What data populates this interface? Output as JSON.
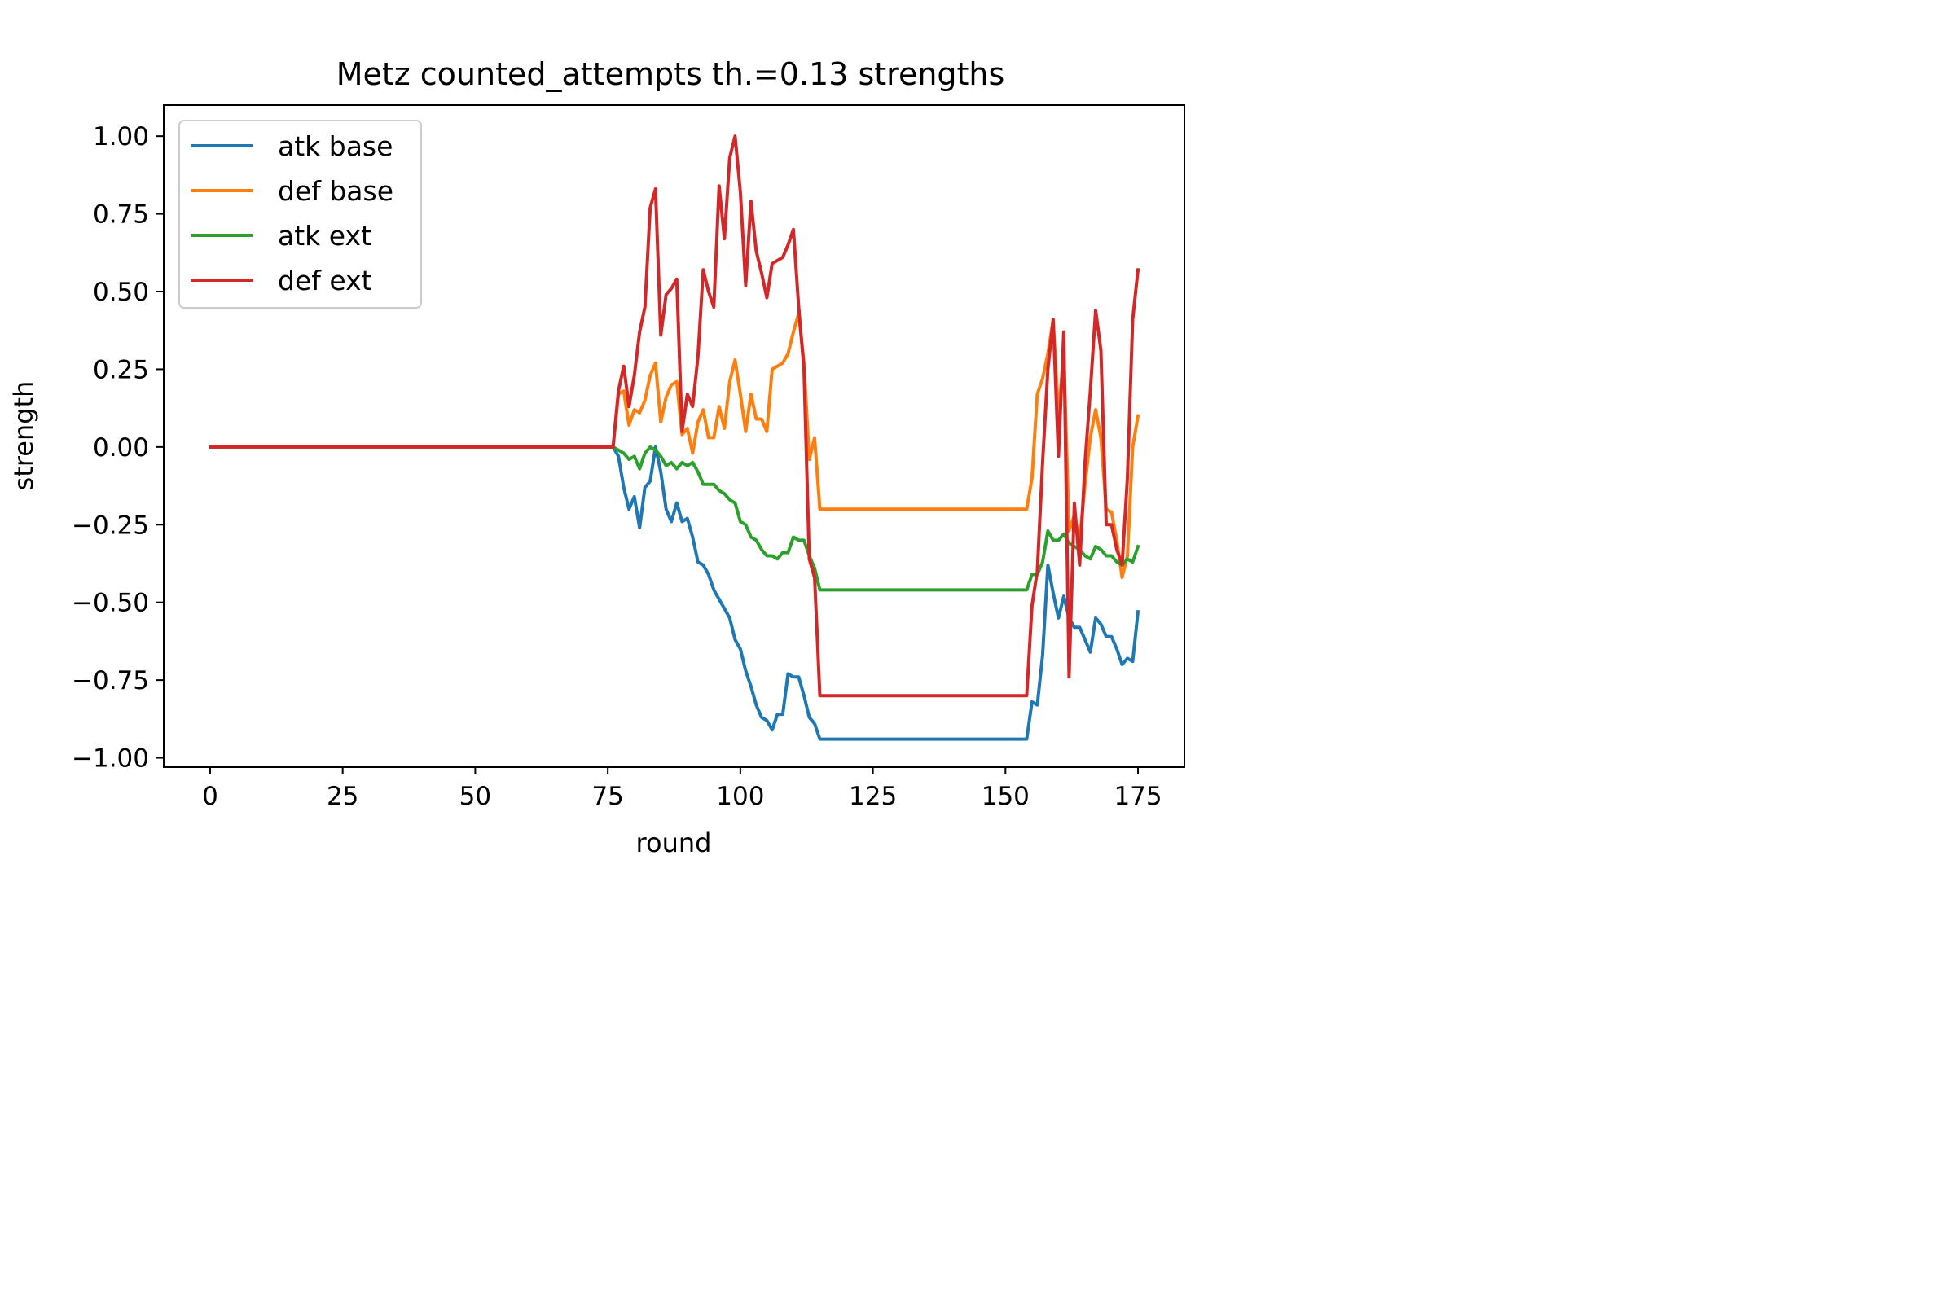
{
  "chart_data": {
    "type": "line",
    "title": "Metz counted_attempts th.=0.13 strengths",
    "xlabel": "round",
    "ylabel": "strength",
    "xlim": [
      -8.75,
      183.75
    ],
    "ylim": [
      -1.03,
      1.1
    ],
    "xticks": [
      0,
      25,
      50,
      75,
      100,
      125,
      150,
      175
    ],
    "xtick_labels": [
      "0",
      "25",
      "50",
      "75",
      "100",
      "125",
      "150",
      "175"
    ],
    "yticks": [
      1.0,
      0.75,
      0.5,
      0.25,
      0.0,
      -0.25,
      -0.5,
      -0.75,
      -1.0
    ],
    "ytick_labels": [
      "1.00",
      "0.75",
      "0.50",
      "0.25",
      "0.00",
      "−0.25",
      "−0.50",
      "−0.75",
      "−1.00"
    ],
    "grid": false,
    "legend": "upper left",
    "series": [
      {
        "name": "atk base",
        "color": "#1f77b4",
        "points": [
          [
            0,
            0
          ],
          [
            76,
            0
          ],
          [
            77,
            -0.03
          ],
          [
            78,
            -0.13
          ],
          [
            79,
            -0.2
          ],
          [
            80,
            -0.16
          ],
          [
            81,
            -0.26
          ],
          [
            82,
            -0.13
          ],
          [
            83,
            -0.11
          ],
          [
            84,
            0.0
          ],
          [
            85,
            -0.08
          ],
          [
            86,
            -0.2
          ],
          [
            87,
            -0.24
          ],
          [
            88,
            -0.18
          ],
          [
            89,
            -0.24
          ],
          [
            90,
            -0.23
          ],
          [
            91,
            -0.29
          ],
          [
            92,
            -0.37
          ],
          [
            93,
            -0.38
          ],
          [
            94,
            -0.41
          ],
          [
            95,
            -0.46
          ],
          [
            96,
            -0.49
          ],
          [
            97,
            -0.52
          ],
          [
            98,
            -0.55
          ],
          [
            99,
            -0.62
          ],
          [
            100,
            -0.65
          ],
          [
            101,
            -0.72
          ],
          [
            102,
            -0.77
          ],
          [
            103,
            -0.83
          ],
          [
            104,
            -0.87
          ],
          [
            105,
            -0.88
          ],
          [
            106,
            -0.91
          ],
          [
            107,
            -0.86
          ],
          [
            108,
            -0.86
          ],
          [
            109,
            -0.73
          ],
          [
            110,
            -0.74
          ],
          [
            111,
            -0.74
          ],
          [
            112,
            -0.8
          ],
          [
            113,
            -0.87
          ],
          [
            114,
            -0.89
          ],
          [
            115,
            -0.94
          ],
          [
            154,
            -0.94
          ],
          [
            155,
            -0.82
          ],
          [
            156,
            -0.83
          ],
          [
            157,
            -0.67
          ],
          [
            158,
            -0.38
          ],
          [
            159,
            -0.47
          ],
          [
            160,
            -0.55
          ],
          [
            161,
            -0.48
          ],
          [
            162,
            -0.55
          ],
          [
            163,
            -0.58
          ],
          [
            164,
            -0.58
          ],
          [
            165,
            -0.62
          ],
          [
            166,
            -0.66
          ],
          [
            167,
            -0.55
          ],
          [
            168,
            -0.57
          ],
          [
            169,
            -0.61
          ],
          [
            170,
            -0.61
          ],
          [
            171,
            -0.65
          ],
          [
            172,
            -0.7
          ],
          [
            173,
            -0.68
          ],
          [
            174,
            -0.69
          ],
          [
            175,
            -0.53
          ]
        ]
      },
      {
        "name": "def base",
        "color": "#ff7f0e",
        "points": [
          [
            0,
            0
          ],
          [
            76,
            0
          ],
          [
            77,
            0.17
          ],
          [
            78,
            0.18
          ],
          [
            79,
            0.07
          ],
          [
            80,
            0.12
          ],
          [
            81,
            0.11
          ],
          [
            82,
            0.15
          ],
          [
            83,
            0.23
          ],
          [
            84,
            0.27
          ],
          [
            85,
            0.08
          ],
          [
            86,
            0.16
          ],
          [
            87,
            0.2
          ],
          [
            88,
            0.21
          ],
          [
            89,
            0.04
          ],
          [
            90,
            0.06
          ],
          [
            91,
            -0.02
          ],
          [
            92,
            0.08
          ],
          [
            93,
            0.12
          ],
          [
            94,
            0.03
          ],
          [
            95,
            0.03
          ],
          [
            96,
            0.13
          ],
          [
            97,
            0.06
          ],
          [
            98,
            0.21
          ],
          [
            99,
            0.28
          ],
          [
            100,
            0.17
          ],
          [
            101,
            0.05
          ],
          [
            102,
            0.17
          ],
          [
            103,
            0.09
          ],
          [
            104,
            0.09
          ],
          [
            105,
            0.05
          ],
          [
            106,
            0.25
          ],
          [
            107,
            0.26
          ],
          [
            108,
            0.27
          ],
          [
            109,
            0.3
          ],
          [
            110,
            0.37
          ],
          [
            111,
            0.43
          ],
          [
            112,
            0.27
          ],
          [
            113,
            -0.04
          ],
          [
            114,
            0.03
          ],
          [
            115,
            -0.2
          ],
          [
            154,
            -0.2
          ],
          [
            155,
            -0.1
          ],
          [
            156,
            0.17
          ],
          [
            157,
            0.22
          ],
          [
            158,
            0.3
          ],
          [
            159,
            0.41
          ],
          [
            160,
            0.1
          ],
          [
            161,
            0.3
          ],
          [
            162,
            -0.27
          ],
          [
            163,
            -0.22
          ],
          [
            164,
            -0.3
          ],
          [
            165,
            -0.12
          ],
          [
            166,
            0.03
          ],
          [
            167,
            0.12
          ],
          [
            168,
            0.03
          ],
          [
            169,
            -0.2
          ],
          [
            170,
            -0.21
          ],
          [
            171,
            -0.3
          ],
          [
            172,
            -0.42
          ],
          [
            173,
            -0.35
          ],
          [
            174,
            -0.0
          ],
          [
            175,
            0.1
          ]
        ]
      },
      {
        "name": "atk ext",
        "color": "#2ca02c",
        "points": [
          [
            0,
            0
          ],
          [
            76,
            0
          ],
          [
            77,
            -0.01
          ],
          [
            78,
            -0.02
          ],
          [
            79,
            -0.04
          ],
          [
            80,
            -0.03
          ],
          [
            81,
            -0.07
          ],
          [
            82,
            -0.02
          ],
          [
            83,
            -0.0
          ],
          [
            84,
            -0.01
          ],
          [
            85,
            -0.03
          ],
          [
            86,
            -0.06
          ],
          [
            87,
            -0.05
          ],
          [
            88,
            -0.07
          ],
          [
            89,
            -0.05
          ],
          [
            90,
            -0.06
          ],
          [
            91,
            -0.05
          ],
          [
            92,
            -0.08
          ],
          [
            93,
            -0.12
          ],
          [
            94,
            -0.12
          ],
          [
            95,
            -0.12
          ],
          [
            96,
            -0.14
          ],
          [
            97,
            -0.15
          ],
          [
            98,
            -0.17
          ],
          [
            99,
            -0.18
          ],
          [
            100,
            -0.24
          ],
          [
            101,
            -0.25
          ],
          [
            102,
            -0.29
          ],
          [
            103,
            -0.3
          ],
          [
            104,
            -0.33
          ],
          [
            105,
            -0.35
          ],
          [
            106,
            -0.35
          ],
          [
            107,
            -0.36
          ],
          [
            108,
            -0.34
          ],
          [
            109,
            -0.34
          ],
          [
            110,
            -0.29
          ],
          [
            111,
            -0.3
          ],
          [
            112,
            -0.3
          ],
          [
            113,
            -0.35
          ],
          [
            114,
            -0.39
          ],
          [
            115,
            -0.46
          ],
          [
            154,
            -0.46
          ],
          [
            155,
            -0.41
          ],
          [
            156,
            -0.41
          ],
          [
            157,
            -0.37
          ],
          [
            158,
            -0.27
          ],
          [
            159,
            -0.3
          ],
          [
            160,
            -0.3
          ],
          [
            161,
            -0.28
          ],
          [
            162,
            -0.31
          ],
          [
            163,
            -0.32
          ],
          [
            164,
            -0.33
          ],
          [
            165,
            -0.35
          ],
          [
            166,
            -0.36
          ],
          [
            167,
            -0.32
          ],
          [
            168,
            -0.33
          ],
          [
            169,
            -0.35
          ],
          [
            170,
            -0.35
          ],
          [
            171,
            -0.37
          ],
          [
            172,
            -0.38
          ],
          [
            173,
            -0.36
          ],
          [
            174,
            -0.37
          ],
          [
            175,
            -0.32
          ]
        ]
      },
      {
        "name": "def ext",
        "color": "#d62728",
        "points": [
          [
            0,
            0
          ],
          [
            76,
            0
          ],
          [
            77,
            0.18
          ],
          [
            78,
            0.26
          ],
          [
            79,
            0.13
          ],
          [
            80,
            0.23
          ],
          [
            81,
            0.37
          ],
          [
            82,
            0.45
          ],
          [
            83,
            0.77
          ],
          [
            84,
            0.83
          ],
          [
            85,
            0.36
          ],
          [
            86,
            0.49
          ],
          [
            87,
            0.51
          ],
          [
            88,
            0.54
          ],
          [
            89,
            0.05
          ],
          [
            90,
            0.17
          ],
          [
            91,
            0.13
          ],
          [
            92,
            0.29
          ],
          [
            93,
            0.57
          ],
          [
            94,
            0.5
          ],
          [
            95,
            0.45
          ],
          [
            96,
            0.84
          ],
          [
            97,
            0.67
          ],
          [
            98,
            0.93
          ],
          [
            99,
            1.0
          ],
          [
            100,
            0.82
          ],
          [
            101,
            0.52
          ],
          [
            102,
            0.79
          ],
          [
            103,
            0.63
          ],
          [
            104,
            0.56
          ],
          [
            105,
            0.48
          ],
          [
            106,
            0.59
          ],
          [
            107,
            0.6
          ],
          [
            108,
            0.61
          ],
          [
            109,
            0.65
          ],
          [
            110,
            0.7
          ],
          [
            111,
            0.45
          ],
          [
            112,
            0.25
          ],
          [
            113,
            -0.36
          ],
          [
            114,
            -0.42
          ],
          [
            115,
            -0.8
          ],
          [
            154,
            -0.8
          ],
          [
            155,
            -0.51
          ],
          [
            156,
            -0.4
          ],
          [
            157,
            -0.05
          ],
          [
            158,
            0.25
          ],
          [
            159,
            0.41
          ],
          [
            160,
            -0.03
          ],
          [
            161,
            0.37
          ],
          [
            162,
            -0.74
          ],
          [
            163,
            -0.18
          ],
          [
            164,
            -0.38
          ],
          [
            165,
            -0.05
          ],
          [
            166,
            0.18
          ],
          [
            167,
            0.44
          ],
          [
            168,
            0.31
          ],
          [
            169,
            -0.25
          ],
          [
            170,
            -0.25
          ],
          [
            171,
            -0.33
          ],
          [
            172,
            -0.38
          ],
          [
            173,
            -0.1
          ],
          [
            174,
            0.41
          ],
          [
            175,
            0.57
          ]
        ]
      }
    ]
  }
}
